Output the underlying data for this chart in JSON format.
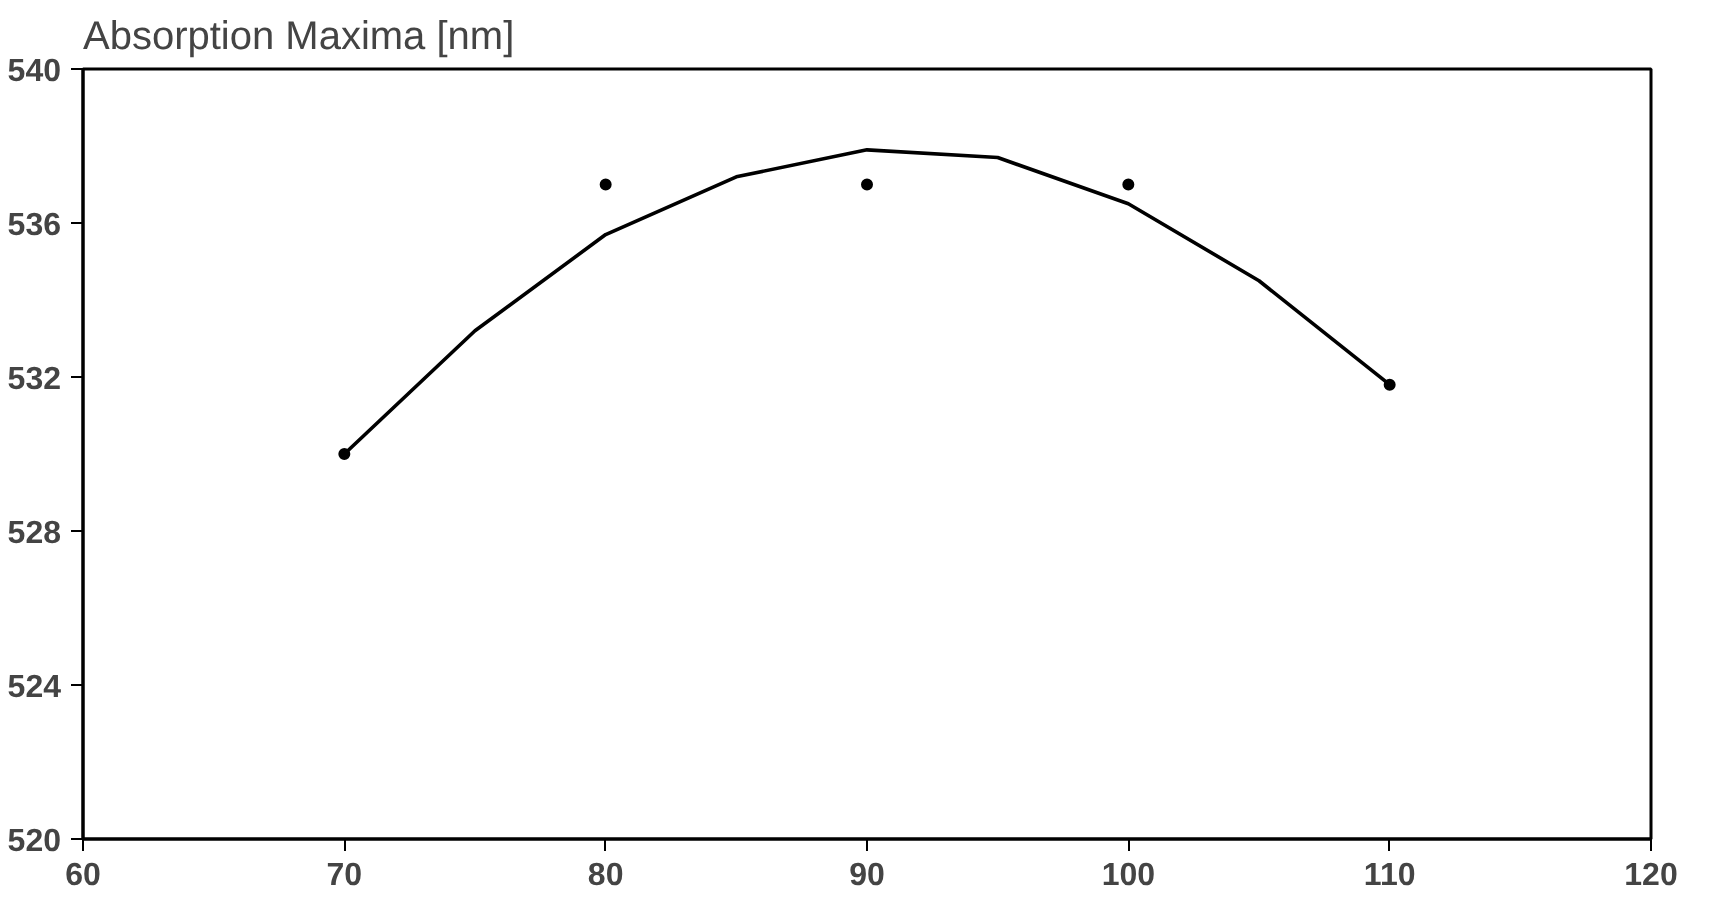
{
  "chart_data": {
    "type": "scatter",
    "title": "Absorption Maxima [nm]",
    "x": [
      70,
      80,
      90,
      100,
      110
    ],
    "series": [
      {
        "color": "#000000",
        "values": [
          530,
          537,
          537,
          537,
          531.8
        ],
        "marker": "circle"
      },
      {
        "type": "line",
        "color": "#000000",
        "x": [
          70,
          75,
          80,
          85,
          90,
          95,
          100,
          105,
          110
        ],
        "values": [
          530,
          533.2,
          535.7,
          537.2,
          537.9,
          537.7,
          536.5,
          534.5,
          531.8
        ],
        "line_style": "solid"
      }
    ],
    "xlim": [
      60,
      120
    ],
    "xticks": [
      60,
      70,
      80,
      90,
      100,
      110,
      120
    ],
    "ylim": [
      520,
      540
    ],
    "yticks": [
      520,
      524,
      528,
      532,
      536,
      540
    ],
    "grid": false
  }
}
